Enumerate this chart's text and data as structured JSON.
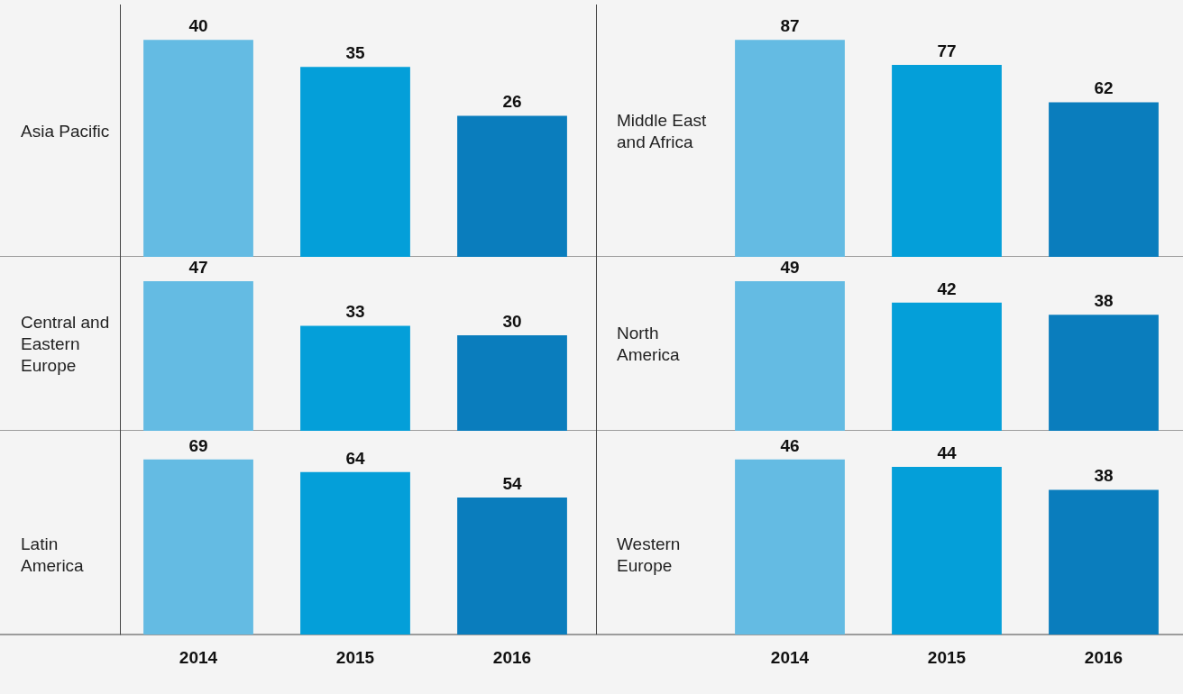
{
  "chart_data": [
    {
      "type": "bar",
      "title": "Asia Pacific",
      "categories": [
        "2014",
        "2015",
        "2016"
      ],
      "values": [
        40,
        35,
        26
      ],
      "colors": [
        "#64bbe3",
        "#049fd9",
        "#0a7dbd"
      ],
      "data_labels": true,
      "tick_labels": false
    },
    {
      "type": "bar",
      "title": "Middle East and Africa",
      "categories": [
        "2014",
        "2015",
        "2016"
      ],
      "values": [
        87,
        77,
        62
      ],
      "colors": [
        "#64bbe3",
        "#049fd9",
        "#0a7dbd"
      ],
      "data_labels": true,
      "tick_labels": false
    },
    {
      "type": "bar",
      "title": "Central and Eastern Europe",
      "categories": [
        "2014",
        "2015",
        "2016"
      ],
      "values": [
        47,
        33,
        30
      ],
      "colors": [
        "#64bbe3",
        "#049fd9",
        "#0a7dbd"
      ],
      "data_labels": true,
      "tick_labels": false
    },
    {
      "type": "bar",
      "title": "North America",
      "categories": [
        "2014",
        "2015",
        "2016"
      ],
      "values": [
        49,
        42,
        38
      ],
      "colors": [
        "#64bbe3",
        "#049fd9",
        "#0a7dbd"
      ],
      "data_labels": true,
      "tick_labels": false
    },
    {
      "type": "bar",
      "title": "Latin America",
      "categories": [
        "2014",
        "2015",
        "2016"
      ],
      "values": [
        69,
        64,
        54
      ],
      "colors": [
        "#64bbe3",
        "#049fd9",
        "#0a7dbd"
      ],
      "data_labels": true,
      "tick_labels": "x"
    },
    {
      "type": "bar",
      "title": "Western Europe",
      "categories": [
        "2014",
        "2015",
        "2016"
      ],
      "values": [
        46,
        44,
        38
      ],
      "colors": [
        "#64bbe3",
        "#049fd9",
        "#0a7dbd"
      ],
      "data_labels": true,
      "tick_labels": "x"
    }
  ]
}
